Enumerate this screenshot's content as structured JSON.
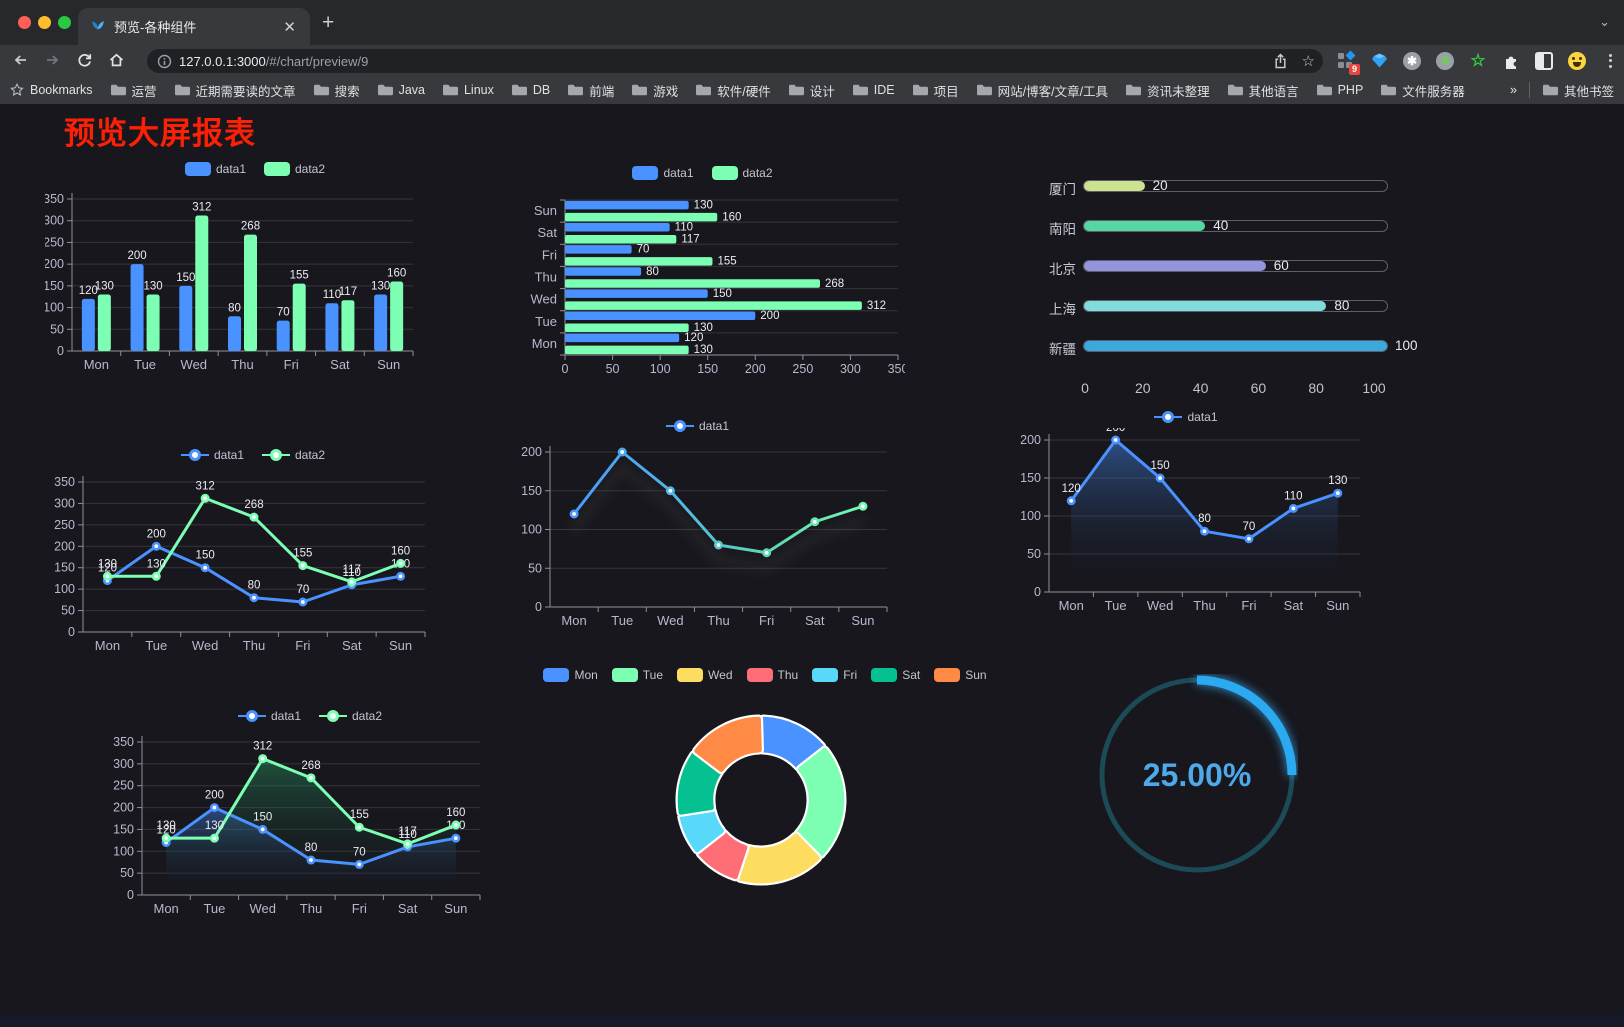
{
  "browser": {
    "tab_title": "预览-各种组件",
    "url_host": "127.0.0.1:3000",
    "url_path": "/#/chart/preview/9",
    "extension_badge": "9",
    "bookmarks_root": "Bookmarks",
    "bookmarks": [
      "运营",
      "近期需要读的文章",
      "搜索",
      "Java",
      "Linux",
      "DB",
      "前端",
      "游戏",
      "软件/硬件",
      "设计",
      "IDE",
      "项目",
      "网站/博客/文章/工具",
      "资讯未整理",
      "其他语言",
      "PHP",
      "文件服务器"
    ],
    "bookmarks_overflow": "»",
    "other_bookmarks": "其他书签"
  },
  "page": {
    "title": "预览大屏报表"
  },
  "chart_data": [
    {
      "type": "bar",
      "legend": "rect",
      "categories": [
        "Mon",
        "Tue",
        "Wed",
        "Thu",
        "Fri",
        "Sat",
        "Sun"
      ],
      "series": [
        {
          "name": "data1",
          "color": "#4992ff",
          "values": [
            120,
            200,
            150,
            80,
            70,
            110,
            130
          ],
          "labels": true
        },
        {
          "name": "data2",
          "color": "#7cffb2",
          "values": [
            130,
            130,
            312,
            268,
            155,
            117,
            160
          ],
          "labels": true
        }
      ],
      "ylim": [
        0,
        350
      ],
      "ystep": 50,
      "grid": true
    },
    {
      "type": "bar-horizontal",
      "legend": "rect",
      "categories": [
        "Mon",
        "Tue",
        "Wed",
        "Thu",
        "Fri",
        "Sat",
        "Sun"
      ],
      "display_order": "Sun at top, Mon at bottom",
      "series": [
        {
          "name": "data1",
          "color": "#4992ff",
          "values": [
            120,
            200,
            150,
            80,
            70,
            110,
            130
          ],
          "labels": true
        },
        {
          "name": "data2",
          "color": "#7cffb2",
          "values": [
            130,
            130,
            312,
            268,
            155,
            117,
            160
          ],
          "labels": true
        }
      ],
      "xlim": [
        0,
        350
      ],
      "xstep": 50,
      "grid": true
    },
    {
      "type": "progress-bars",
      "xlim": [
        0,
        100
      ],
      "ticks": [
        0,
        20,
        40,
        60,
        80,
        100
      ],
      "items": [
        {
          "label": "厦门",
          "value": 20,
          "color": "#cde28f"
        },
        {
          "label": "南阳",
          "value": 40,
          "color": "#55d7a4"
        },
        {
          "label": "北京",
          "value": 60,
          "color": "#9295de"
        },
        {
          "label": "上海",
          "value": 80,
          "color": "#81dddb"
        },
        {
          "label": "新疆",
          "value": 100,
          "color": "#3ca9dd"
        }
      ]
    },
    {
      "type": "line",
      "legend": "line",
      "categories": [
        "Mon",
        "Tue",
        "Wed",
        "Thu",
        "Fri",
        "Sat",
        "Sun"
      ],
      "series": [
        {
          "name": "data1",
          "color": "#4992ff",
          "values": [
            120,
            200,
            150,
            80,
            70,
            110,
            130
          ],
          "labels": true
        },
        {
          "name": "data2",
          "color": "#7cffb2",
          "values": [
            130,
            130,
            312,
            268,
            155,
            117,
            160
          ],
          "labels": true
        }
      ],
      "ylim": [
        0,
        350
      ],
      "ystep": 50,
      "grid": true
    },
    {
      "type": "line",
      "legend": "line",
      "shadow": true,
      "categories": [
        "Mon",
        "Tue",
        "Wed",
        "Thu",
        "Fri",
        "Sat",
        "Sun"
      ],
      "series": [
        {
          "name": "data1",
          "gradient": [
            "#4992ff",
            "#4fb3e8",
            "#5fd9b0",
            "#7cffb2"
          ],
          "values": [
            120,
            200,
            150,
            80,
            70,
            110,
            130
          ],
          "labels": false
        }
      ],
      "ylim": [
        0,
        200
      ],
      "ystep": 50,
      "grid": true
    },
    {
      "type": "area",
      "legend": "line",
      "categories": [
        "Mon",
        "Tue",
        "Wed",
        "Thu",
        "Fri",
        "Sat",
        "Sun"
      ],
      "series": [
        {
          "name": "data1",
          "color": "#4992ff",
          "values": [
            120,
            200,
            150,
            80,
            70,
            110,
            130
          ],
          "area": "rgba(73,146,255,0.45)",
          "labels": true
        }
      ],
      "ylim": [
        0,
        200
      ],
      "ystep": 50,
      "grid": true
    },
    {
      "type": "area",
      "legend": "line",
      "categories": [
        "Mon",
        "Tue",
        "Wed",
        "Thu",
        "Fri",
        "Sat",
        "Sun"
      ],
      "series": [
        {
          "name": "data1",
          "color": "#4992ff",
          "values": [
            120,
            200,
            150,
            80,
            70,
            110,
            130
          ],
          "area": "rgba(73,146,255,0.42)",
          "labels": true
        },
        {
          "name": "data2",
          "color": "#7cffb2",
          "values": [
            130,
            130,
            312,
            268,
            155,
            117,
            160
          ],
          "area": "rgba(40,155,100,0.45)",
          "labels": true
        }
      ],
      "ylim": [
        0,
        350
      ],
      "ystep": 50,
      "grid": true
    },
    {
      "type": "pie",
      "legend": "rect",
      "shape": "donut",
      "categories": [
        "Mon",
        "Tue",
        "Wed",
        "Thu",
        "Fri",
        "Sat",
        "Sun"
      ],
      "values": [
        120,
        200,
        150,
        80,
        70,
        110,
        130
      ],
      "colors": [
        "#4992ff",
        "#7cffb2",
        "#fddd60",
        "#ff6e76",
        "#58d9f9",
        "#05c091",
        "#ff8a45"
      ]
    },
    {
      "type": "gauge",
      "value": 25,
      "label": "25.00%",
      "color": "#2ba9f1",
      "track_color": "#1d4a57",
      "text_color": "#4da9ea"
    }
  ]
}
